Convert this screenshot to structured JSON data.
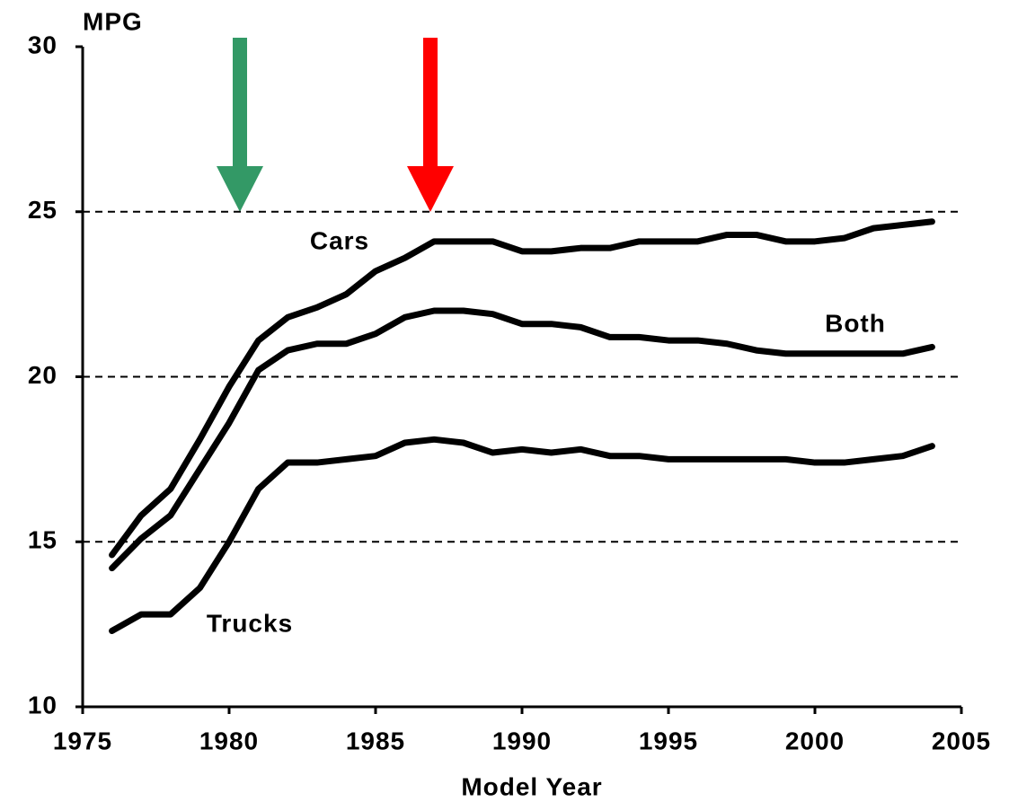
{
  "chart_data": {
    "type": "line",
    "y_label": "MPG",
    "x_label": "Model Year",
    "x": [
      1976,
      1977,
      1978,
      1979,
      1980,
      1981,
      1982,
      1983,
      1984,
      1985,
      1986,
      1987,
      1988,
      1989,
      1990,
      1991,
      1992,
      1993,
      1994,
      1995,
      1996,
      1997,
      1998,
      1999,
      2000,
      2001,
      2002,
      2003,
      2004
    ],
    "series": [
      {
        "name": "Cars",
        "color": "#000000",
        "values": [
          14.6,
          15.8,
          16.6,
          18.1,
          19.7,
          21.1,
          21.8,
          22.1,
          22.5,
          23.2,
          23.6,
          24.1,
          24.1,
          24.1,
          23.8,
          23.8,
          23.9,
          23.9,
          24.1,
          24.1,
          24.1,
          24.3,
          24.3,
          24.1,
          24.1,
          24.2,
          24.5,
          24.6,
          24.7
        ]
      },
      {
        "name": "Both",
        "color": "#000000",
        "values": [
          14.2,
          15.1,
          15.8,
          17.2,
          18.6,
          20.2,
          20.8,
          21.0,
          21.0,
          21.3,
          21.8,
          22.0,
          22.0,
          21.9,
          21.6,
          21.6,
          21.5,
          21.2,
          21.2,
          21.1,
          21.1,
          21.0,
          20.8,
          20.7,
          20.7,
          20.7,
          20.7,
          20.7,
          20.9
        ]
      },
      {
        "name": "Trucks",
        "color": "#000000",
        "values": [
          12.3,
          12.8,
          12.8,
          13.6,
          15.0,
          16.6,
          17.4,
          17.4,
          17.5,
          17.6,
          18.0,
          18.1,
          18.0,
          17.7,
          17.8,
          17.7,
          17.8,
          17.6,
          17.6,
          17.5,
          17.5,
          17.5,
          17.5,
          17.5,
          17.4,
          17.4,
          17.5,
          17.6,
          17.9
        ]
      }
    ],
    "xlim": [
      1975,
      2005
    ],
    "xticks": [
      1975,
      1980,
      1985,
      1990,
      1995,
      2000,
      2005
    ],
    "ylim": [
      10,
      30
    ],
    "yticks": [
      10,
      15,
      20,
      25,
      30
    ],
    "grid": true
  }
}
